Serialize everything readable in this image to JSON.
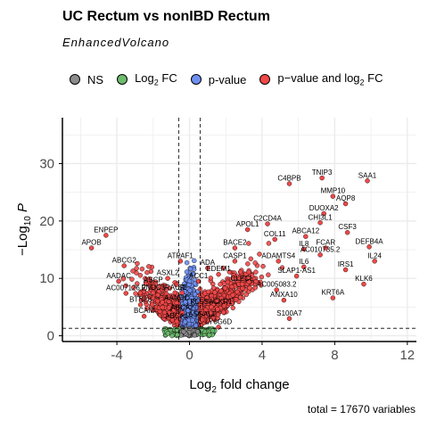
{
  "title": "UC Rectum vs nonIBD Rectum",
  "subtitle": "EnhancedVolcano",
  "caption": "total = 17670 variables",
  "legend": {
    "items": [
      {
        "label": "NS",
        "color": "#8c8c8c"
      },
      {
        "label": "Log",
        "sub": "2",
        "suffix": " FC",
        "color": "#6dbb6d"
      },
      {
        "label": "p-value",
        "color": "#6f8ff0"
      },
      {
        "label": "p−value and log",
        "sub": "2",
        "suffix": " FC",
        "color": "#f24848"
      }
    ]
  },
  "chart_data": {
    "type": "scatter",
    "title": "UC Rectum vs nonIBD Rectum",
    "subtitle": "EnhancedVolcano",
    "xlabel": "Log2 fold change",
    "ylabel": "−Log10 P",
    "xlim": [
      -7,
      12.5
    ],
    "ylim": [
      -1,
      38
    ],
    "xticks": [
      -4,
      0,
      4,
      8,
      12
    ],
    "yticks": [
      0,
      10,
      20,
      30
    ],
    "fc_cutoff": 0.585,
    "p_cutoff_log10": 1.3,
    "grid": true,
    "legend_position": "top",
    "colors": {
      "ns": "#8c8c8c",
      "fc": "#6dbb6d",
      "pvalue": "#6f8ff0",
      "both": "#f24848"
    },
    "labeled_points": [
      {
        "label": "TNIP3",
        "x": 7.3,
        "y": 27.5
      },
      {
        "label": "SAA1",
        "x": 9.8,
        "y": 27.0
      },
      {
        "label": "C4BPB",
        "x": 5.5,
        "y": 26.5
      },
      {
        "label": "MMP10",
        "x": 7.9,
        "y": 24.3
      },
      {
        "label": "AQP8",
        "x": 8.6,
        "y": 23.0
      },
      {
        "label": "DUOXA2",
        "x": 7.4,
        "y": 21.3
      },
      {
        "label": "CHI3L1",
        "x": 7.2,
        "y": 19.7
      },
      {
        "label": "C2CD4A",
        "x": 4.3,
        "y": 19.5
      },
      {
        "label": "APOL1",
        "x": 3.2,
        "y": 18.5
      },
      {
        "label": "CSF3",
        "x": 8.7,
        "y": 18.0
      },
      {
        "label": "ABCA12",
        "x": 6.4,
        "y": 17.3
      },
      {
        "label": "ENPEP",
        "x": -4.6,
        "y": 17.5
      },
      {
        "label": "COL11",
        "x": 4.7,
        "y": 16.8
      },
      {
        "label": "FCAR",
        "x": 7.5,
        "y": 15.3
      },
      {
        "label": "DEFB4A",
        "x": 9.9,
        "y": 15.5
      },
      {
        "label": "IL8",
        "x": 6.3,
        "y": 15.1
      },
      {
        "label": "BACE2",
        "x": 2.5,
        "y": 15.3
      },
      {
        "label": "APOB",
        "x": -5.4,
        "y": 15.3
      },
      {
        "label": "AC010735.2",
        "x": 7.2,
        "y": 14.1
      },
      {
        "label": "ADAMTS4",
        "x": 4.9,
        "y": 13.0
      },
      {
        "label": "CASP1",
        "x": 2.5,
        "y": 13.0
      },
      {
        "label": "ATPAF1",
        "x": -0.5,
        "y": 13.0
      },
      {
        "label": "IL24",
        "x": 10.2,
        "y": 13.0
      },
      {
        "label": "ADA",
        "x": 1.0,
        "y": 11.8
      },
      {
        "label": "IL6",
        "x": 6.3,
        "y": 12.0
      },
      {
        "label": "ABCG2",
        "x": -3.6,
        "y": 12.2
      },
      {
        "label": "IRS1",
        "x": 8.6,
        "y": 11.5
      },
      {
        "label": "EDEM1",
        "x": 1.6,
        "y": 10.7
      },
      {
        "label": "SLAP1-AS1",
        "x": 5.9,
        "y": 10.4
      },
      {
        "label": "ASXL2",
        "x": -1.2,
        "y": 10.0
      },
      {
        "label": "AADAC",
        "x": -3.9,
        "y": 9.5
      },
      {
        "label": "ACC1",
        "x": 0.5,
        "y": 9.5
      },
      {
        "label": "KLK6",
        "x": 9.6,
        "y": 9.0
      },
      {
        "label": "CLECL",
        "x": 2.9,
        "y": 9.0
      },
      {
        "label": "ASCP",
        "x": -2.0,
        "y": 8.8
      },
      {
        "label": "AC007126.2",
        "x": -3.5,
        "y": 7.4
      },
      {
        "label": "FNDC3",
        "x": -2.0,
        "y": 7.5
      },
      {
        "label": "RAUR",
        "x": -0.8,
        "y": 7.5
      },
      {
        "label": "S2",
        "x": -0.4,
        "y": 7.5
      },
      {
        "label": "AC005083.2",
        "x": 4.8,
        "y": 8.0
      },
      {
        "label": "KRT6A",
        "x": 7.9,
        "y": 6.6
      },
      {
        "label": "ANXA10",
        "x": 5.2,
        "y": 6.2
      },
      {
        "label": "AANDC",
        "x": -0.7,
        "y": 5.7
      },
      {
        "label": "BTNL8",
        "x": -2.7,
        "y": 5.4
      },
      {
        "label": "PLSSACKR1",
        "x": 1.2,
        "y": 5.0
      },
      {
        "label": "ABCA2",
        "x": -0.4,
        "y": 4.0
      },
      {
        "label": "BCAM",
        "x": -2.5,
        "y": 3.4
      },
      {
        "label": "S100A7",
        "x": 5.5,
        "y": 3.0
      },
      {
        "label": "ASGALT",
        "x": 0.7,
        "y": 2.8
      },
      {
        "label": "ABCA1",
        "x": -0.7,
        "y": 2.5
      },
      {
        "label": "LY6G6D",
        "x": 1.6,
        "y": 1.5
      }
    ]
  }
}
